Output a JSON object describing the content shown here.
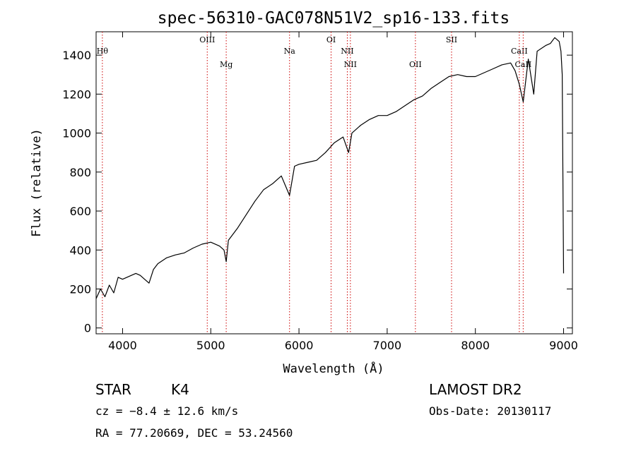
{
  "chart_data": {
    "type": "line",
    "title": "spec-56310-GAC078N51V2_sp16-133.fits",
    "xlabel": "Wavelength (Å)",
    "ylabel": "Flux (relative)",
    "xlim": [
      3700,
      9100
    ],
    "ylim": [
      -30,
      1520
    ],
    "xticks": [
      4000,
      5000,
      6000,
      7000,
      8000,
      9000
    ],
    "yticks": [
      0,
      200,
      400,
      600,
      800,
      1000,
      1200,
      1400
    ],
    "grid": false,
    "line_color": "#000000",
    "marker_color": "#cc0000",
    "series": [
      {
        "x": [
          3700,
          3750,
          3800,
          3850,
          3900,
          3950,
          4000,
          4050,
          4100,
          4150,
          4200,
          4250,
          4300,
          4350,
          4400,
          4500,
          4600,
          4700,
          4800,
          4900,
          5000,
          5100,
          5150,
          5175,
          5200,
          5300,
          5400,
          5500,
          5600,
          5700,
          5800,
          5893,
          5950,
          6000,
          6100,
          6200,
          6300,
          6400,
          6500,
          6563,
          6600,
          6700,
          6800,
          6900,
          7000,
          7100,
          7200,
          7300,
          7400,
          7500,
          7600,
          7700,
          7800,
          7900,
          8000,
          8100,
          8200,
          8300,
          8400,
          8450,
          8498,
          8542,
          8600,
          8662,
          8700,
          8800,
          8850,
          8900,
          8950,
          8970,
          8985,
          9000
        ],
        "y": [
          150,
          200,
          160,
          220,
          180,
          260,
          250,
          260,
          270,
          280,
          270,
          250,
          230,
          300,
          330,
          360,
          375,
          385,
          410,
          430,
          440,
          420,
          400,
          340,
          450,
          510,
          580,
          650,
          710,
          740,
          780,
          680,
          830,
          840,
          850,
          860,
          900,
          950,
          980,
          900,
          1000,
          1040,
          1070,
          1090,
          1090,
          1110,
          1140,
          1170,
          1190,
          1230,
          1260,
          1290,
          1300,
          1290,
          1290,
          1310,
          1330,
          1350,
          1360,
          1320,
          1250,
          1160,
          1380,
          1200,
          1420,
          1450,
          1460,
          1490,
          1470,
          1420,
          1300,
          280
        ]
      }
    ],
    "lines": [
      {
        "label": "Hθ",
        "x": 3771
      },
      {
        "label": "OIII",
        "x": 4960
      },
      {
        "label": "Mg",
        "x": 5175
      },
      {
        "label": "Na",
        "x": 5893
      },
      {
        "label": "OI",
        "x": 6364
      },
      {
        "label": "NII",
        "x": 6548
      },
      {
        "label": "NII",
        "x": 6583
      },
      {
        "label": "OII",
        "x": 7320
      },
      {
        "label": "SII",
        "x": 7730
      },
      {
        "label": "CaII",
        "x": 8498
      },
      {
        "label": "CaII",
        "x": 8542
      }
    ]
  },
  "info": {
    "object_class": "STAR",
    "subclass": "K4",
    "survey": "LAMOST DR2",
    "cz": "cz = −8.4 ± 12.6 km/s",
    "obs_date": "Obs-Date: 20130117",
    "coords": "RA =  77.20669, DEC =  53.24560"
  }
}
